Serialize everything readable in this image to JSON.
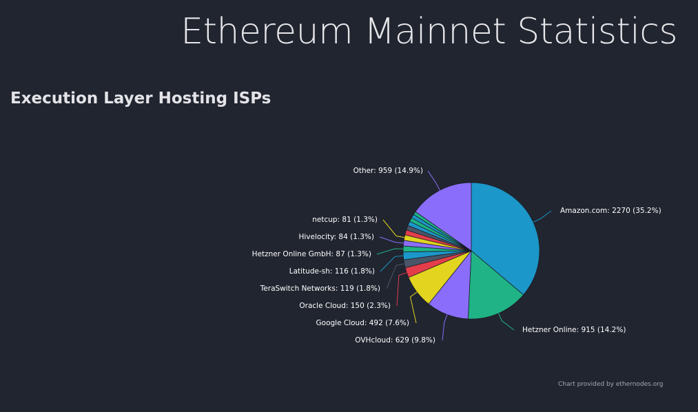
{
  "page": {
    "title": "Ethereum Mainnet Statistics",
    "section_title": "Execution Layer Hosting ISPs",
    "credit": "Chart provided by ethernodes.org"
  },
  "chart_data": {
    "type": "pie",
    "start_angle_deg": 0,
    "slices": [
      {
        "label": "Amazon.com: 2270 (35.2%)",
        "name": "Amazon.com",
        "value": 2270,
        "percent": 35.2,
        "color": "#1c97c9",
        "show_label": true
      },
      {
        "label": "Hetzner Online: 915 (14.2%)",
        "name": "Hetzner Online",
        "value": 915,
        "percent": 14.2,
        "color": "#1fb385",
        "show_label": true
      },
      {
        "label": "OVHcloud: 629 (9.8%)",
        "name": "OVHcloud",
        "value": 629,
        "percent": 9.8,
        "color": "#8a6efb",
        "show_label": true
      },
      {
        "label": "Google Cloud: 492 (7.6%)",
        "name": "Google Cloud",
        "value": 492,
        "percent": 7.6,
        "color": "#e2d41f",
        "show_label": true
      },
      {
        "label": "Oracle Cloud: 150 (2.3%)",
        "name": "Oracle Cloud",
        "value": 150,
        "percent": 2.3,
        "color": "#e43d4a",
        "show_label": true
      },
      {
        "label": "TeraSwitch Networks: 119 (1.8%)",
        "name": "TeraSwitch Networks",
        "value": 119,
        "percent": 1.8,
        "color": "#4a5568",
        "show_label": true
      },
      {
        "label": "Latitude-sh: 116 (1.8%)",
        "name": "Latitude-sh",
        "value": 116,
        "percent": 1.8,
        "color": "#1c97c9",
        "show_label": true
      },
      {
        "label": "Hetzner Online GmbH: 87 (1.3%)",
        "name": "Hetzner Online GmbH",
        "value": 87,
        "percent": 1.3,
        "color": "#1fb385",
        "show_label": true
      },
      {
        "label": "Hivelocity: 84 (1.3%)",
        "name": "Hivelocity",
        "value": 84,
        "percent": 1.3,
        "color": "#8a6efb",
        "show_label": true
      },
      {
        "label": "netcup: 81 (1.3%)",
        "name": "netcup",
        "value": 81,
        "percent": 1.3,
        "color": "#e2d41f",
        "show_label": true
      },
      {
        "label": "",
        "name": "",
        "value": 75,
        "percent": 1.2,
        "color": "#e43d4a",
        "show_label": false
      },
      {
        "label": "",
        "name": "",
        "value": 70,
        "percent": 1.1,
        "color": "#4a5568",
        "show_label": false
      },
      {
        "label": "",
        "name": "",
        "value": 65,
        "percent": 1.0,
        "color": "#1c97c9",
        "show_label": false
      },
      {
        "label": "",
        "name": "",
        "value": 60,
        "percent": 0.9,
        "color": "#1fb385",
        "show_label": false
      },
      {
        "label": "",
        "name": "",
        "value": 55,
        "percent": 0.9,
        "color": "#1c97c9",
        "show_label": false
      },
      {
        "label": "",
        "name": "",
        "value": 50,
        "percent": 0.8,
        "color": "#1fb385",
        "show_label": false
      },
      {
        "label": "Other: 959 (14.9%)",
        "name": "Other",
        "value": 959,
        "percent": 14.9,
        "color": "#8a6efb",
        "show_label": true
      }
    ]
  }
}
